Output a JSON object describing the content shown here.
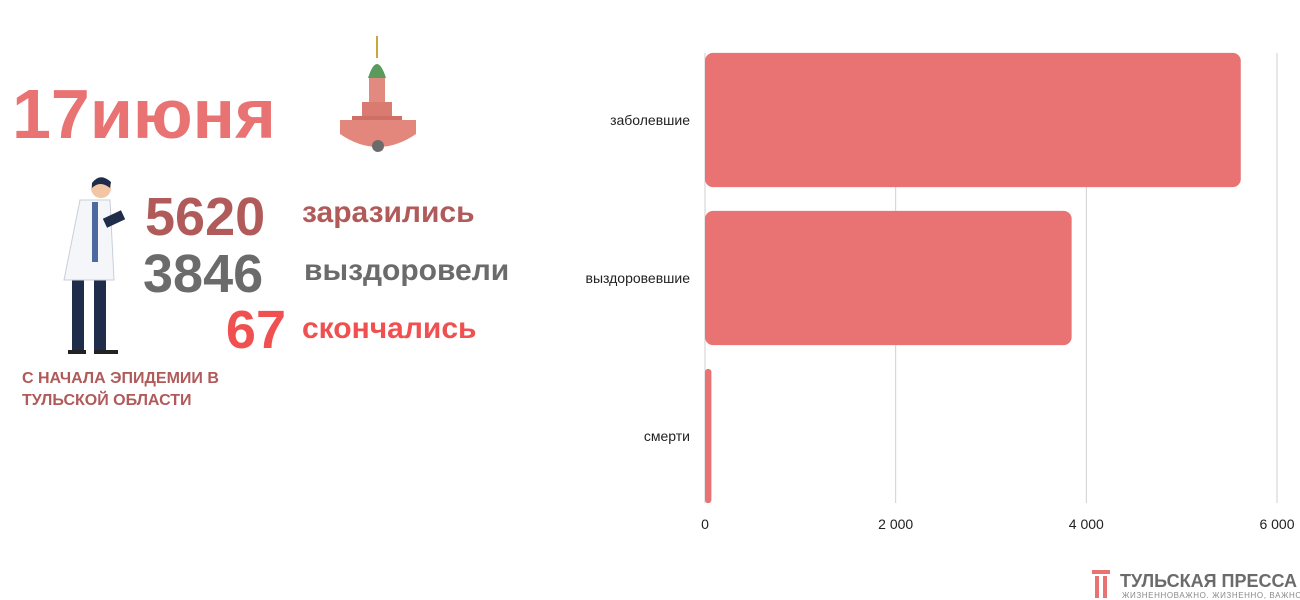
{
  "header": {
    "date": "17июня"
  },
  "summary": [
    {
      "value": 5620,
      "label": "заразились"
    },
    {
      "value": 3846,
      "label": "выздоровели"
    },
    {
      "value": 67,
      "label": "скончались"
    }
  ],
  "note": "С НАЧАЛА ЭПИДЕМИИ В ТУЛЬСКОЙ ОБЛАСТИ",
  "footer": {
    "brand": "ТУЛЬСКАЯ ПРЕССА",
    "slogan": "ЖИЗНЕННОВАЖНО. ЖИЗНЕННО, ВАЖНО"
  },
  "chart_data": {
    "type": "barh",
    "categories": [
      "заболевшие",
      "выздоровевшие",
      "смерти"
    ],
    "values": [
      5620,
      3846,
      67
    ],
    "color": "#e97373",
    "xlim": [
      0,
      6000
    ],
    "xticks": [
      0,
      {
        "value": 2000,
        "label": "2 000"
      },
      {
        "value": 4000,
        "label": "4 000"
      },
      {
        "value": 6000,
        "label": "6 000"
      }
    ],
    "grid": true
  }
}
